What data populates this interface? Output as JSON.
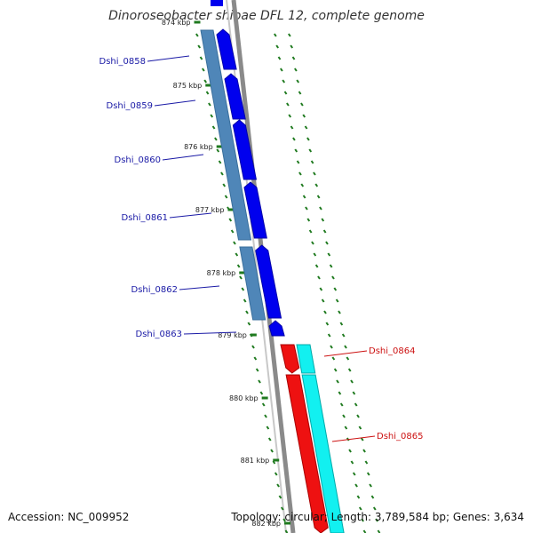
{
  "title": "Dinoroseobacter shibae DFL 12, complete genome",
  "accession": "Accession: NC_009952",
  "summary": "Topology: circular; Length: 3,789,584 bp; Genes: 3,634",
  "colors": {
    "ring_gray": "#8a8a8a",
    "cds_forward": "#0000ee",
    "cds_reverse": "#ee1111",
    "gene_block_blue": "#4f86b8",
    "gene_block_cyan": "#12f0f0",
    "tick_green": "#1f7a1f",
    "label_blue": "#1a1aa6",
    "label_red": "#cc1111"
  },
  "scale_ticks": [
    {
      "label": "874 kbp"
    },
    {
      "label": "875 kbp"
    },
    {
      "label": "876 kbp"
    },
    {
      "label": "877 kbp"
    },
    {
      "label": "878 kbp"
    },
    {
      "label": "879 kbp"
    },
    {
      "label": "880 kbp"
    },
    {
      "label": "881 kbp"
    },
    {
      "label": "882 kbp"
    }
  ],
  "genes": [
    {
      "name": "Dshi_0858",
      "strand": "+"
    },
    {
      "name": "Dshi_0859",
      "strand": "+"
    },
    {
      "name": "Dshi_0860",
      "strand": "+"
    },
    {
      "name": "Dshi_0861",
      "strand": "+"
    },
    {
      "name": "Dshi_0862",
      "strand": "+"
    },
    {
      "name": "Dshi_0863",
      "strand": "+"
    },
    {
      "name": "Dshi_0864",
      "strand": "-"
    },
    {
      "name": "Dshi_0865",
      "strand": "-"
    }
  ]
}
